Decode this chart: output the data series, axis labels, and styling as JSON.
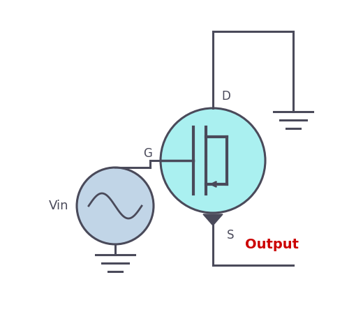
{
  "bg_color": "#ffffff",
  "wire_color": "#4a4a5a",
  "wire_lw": 2.2,
  "mosfet_fill": "#7de8e8",
  "mosfet_alpha": 0.65,
  "vin_fill": "#adc8e0",
  "vin_alpha": 0.75,
  "label_vin": "Vin",
  "label_g": "G",
  "label_d": "D",
  "label_s": "S",
  "label_output": "Output",
  "output_color": "#cc0000",
  "text_color": "#4a4a5a",
  "text_fontsize": 12,
  "output_fontsize": 14
}
